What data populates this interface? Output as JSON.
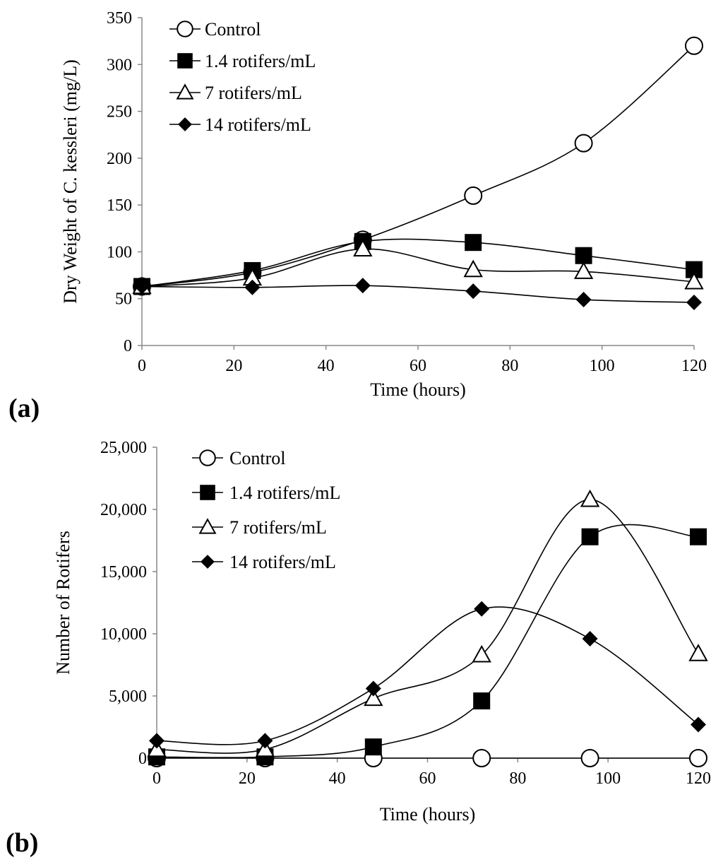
{
  "chart_data": [
    {
      "type": "line",
      "panel_label": "(a)",
      "title": "",
      "xlabel": "Time (hours)",
      "ylabel": "Dry Weight of C. kessleri (mg/L)",
      "xlim": [
        0,
        120
      ],
      "ylim": [
        0,
        350
      ],
      "xticks": [
        0,
        20,
        40,
        60,
        80,
        100,
        120
      ],
      "yticks": [
        0,
        50,
        100,
        150,
        200,
        250,
        300,
        350
      ],
      "ytick_labels": [
        "0",
        "50",
        "100",
        "150",
        "200",
        "250",
        "300",
        "350"
      ],
      "x": [
        0,
        24,
        48,
        72,
        96,
        120
      ],
      "legend_position": "top-left",
      "series": [
        {
          "name": "Control",
          "marker": "open-circle",
          "values": [
            63,
            78,
            113,
            160,
            216,
            320
          ]
        },
        {
          "name": "1.4 rotifers/mL",
          "marker": "filled-square",
          "values": [
            63,
            80,
            111,
            110,
            96,
            81
          ]
        },
        {
          "name": "7 rotifers/mL",
          "marker": "open-triangle",
          "values": [
            63,
            72,
            103,
            81,
            79,
            68
          ]
        },
        {
          "name": "14 rotifers/mL",
          "marker": "filled-diamond",
          "values": [
            63,
            62,
            64,
            58,
            49,
            46
          ]
        }
      ]
    },
    {
      "type": "line",
      "panel_label": "(b)",
      "title": "",
      "xlabel": "Time (hours)",
      "ylabel": "Number of Rotifers",
      "xlim": [
        0,
        120
      ],
      "ylim": [
        0,
        25000
      ],
      "xticks": [
        0,
        20,
        40,
        60,
        80,
        100,
        120
      ],
      "yticks": [
        0,
        5000,
        10000,
        15000,
        20000,
        25000
      ],
      "ytick_labels": [
        "0",
        "5,000",
        "10,000",
        "15,000",
        "20,000",
        "25,000"
      ],
      "x": [
        0,
        24,
        48,
        72,
        96,
        120
      ],
      "legend_position": "top-left",
      "series": [
        {
          "name": "Control",
          "marker": "open-circle",
          "values": [
            0,
            0,
            0,
            0,
            0,
            0
          ]
        },
        {
          "name": "1.4 rotifers/mL",
          "marker": "filled-square",
          "values": [
            100,
            100,
            900,
            4600,
            17800,
            17800
          ]
        },
        {
          "name": "7 rotifers/mL",
          "marker": "open-triangle",
          "values": [
            700,
            700,
            4800,
            8300,
            20800,
            8400
          ]
        },
        {
          "name": "14 rotifers/mL",
          "marker": "filled-diamond",
          "values": [
            1400,
            1400,
            5600,
            12000,
            9600,
            2700
          ]
        }
      ]
    }
  ]
}
